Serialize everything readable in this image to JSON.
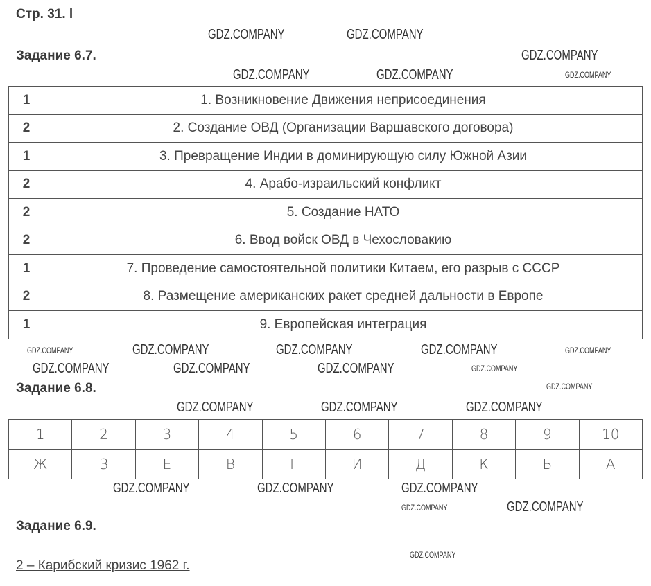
{
  "page_label": "Стр. 31. l",
  "task67": {
    "title": "Задание 6.7.",
    "rows": [
      {
        "n": "1",
        "text": "1. Возникновение Движения неприсоединения"
      },
      {
        "n": "2",
        "text": "2. Создание ОВД (Организации Варшавского договора)"
      },
      {
        "n": "1",
        "text": "3. Превращение Индии в доминирующую силу Южной Азии"
      },
      {
        "n": "2",
        "text": "4. Арабо-израильский конфликт"
      },
      {
        "n": "2",
        "text": "5. Создание НАТО"
      },
      {
        "n": "2",
        "text": "6. Ввод войск ОВД в Чехословакию"
      },
      {
        "n": "1",
        "text": "7. Проведение самостоятельной политики Китаем, его разрыв с СССР"
      },
      {
        "n": "2",
        "text": "8. Размещение американских ракет средней дальности в Европе"
      },
      {
        "n": "1",
        "text": "9. Европейская интеграция"
      }
    ]
  },
  "task68": {
    "title": "Задание 6.8.",
    "numbers": [
      "1",
      "2",
      "3",
      "4",
      "5",
      "6",
      "7",
      "8",
      "9",
      "10"
    ],
    "letters": [
      "Ж",
      "З",
      "Е",
      "В",
      "Г",
      "И",
      "Д",
      "К",
      "Б",
      "А"
    ]
  },
  "task69": {
    "title": "Задание 6.9.",
    "answer": "2 – Карибский кризис 1962 г."
  },
  "watermark": "GDZ.COMPANY"
}
